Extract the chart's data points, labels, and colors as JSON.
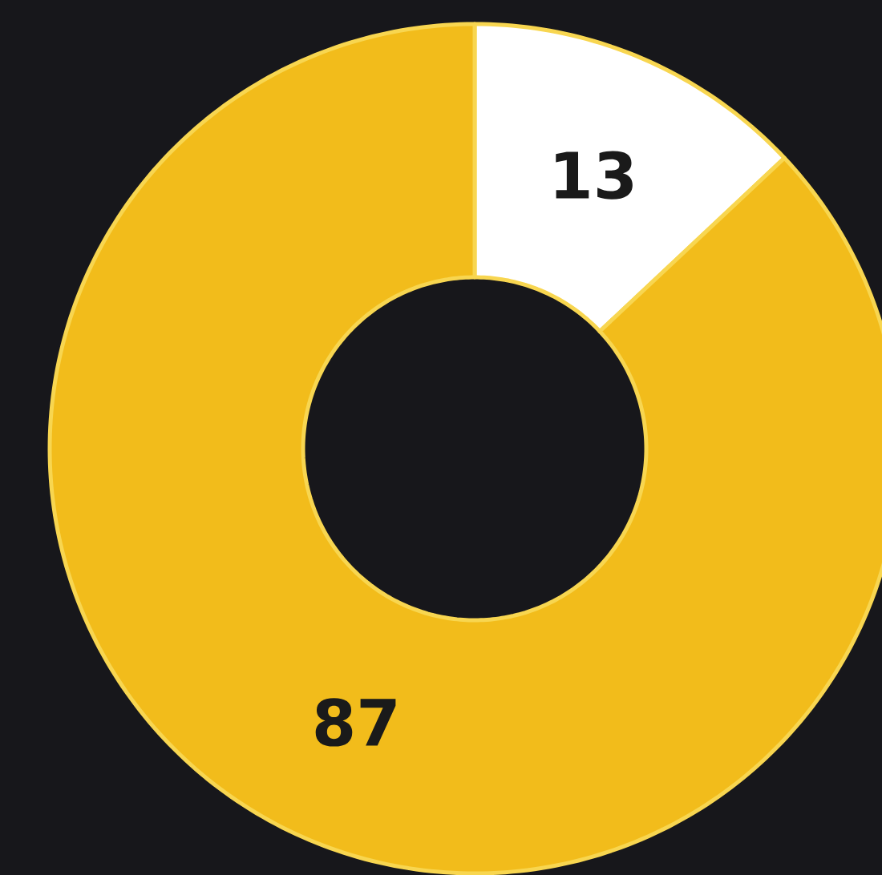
{
  "chart_data": {
    "type": "donut",
    "categories": [
      null,
      null
    ],
    "values": [
      13,
      87
    ],
    "colors": [
      "#ffffff",
      "#f2bc1b"
    ],
    "data_labels": true
  }
}
